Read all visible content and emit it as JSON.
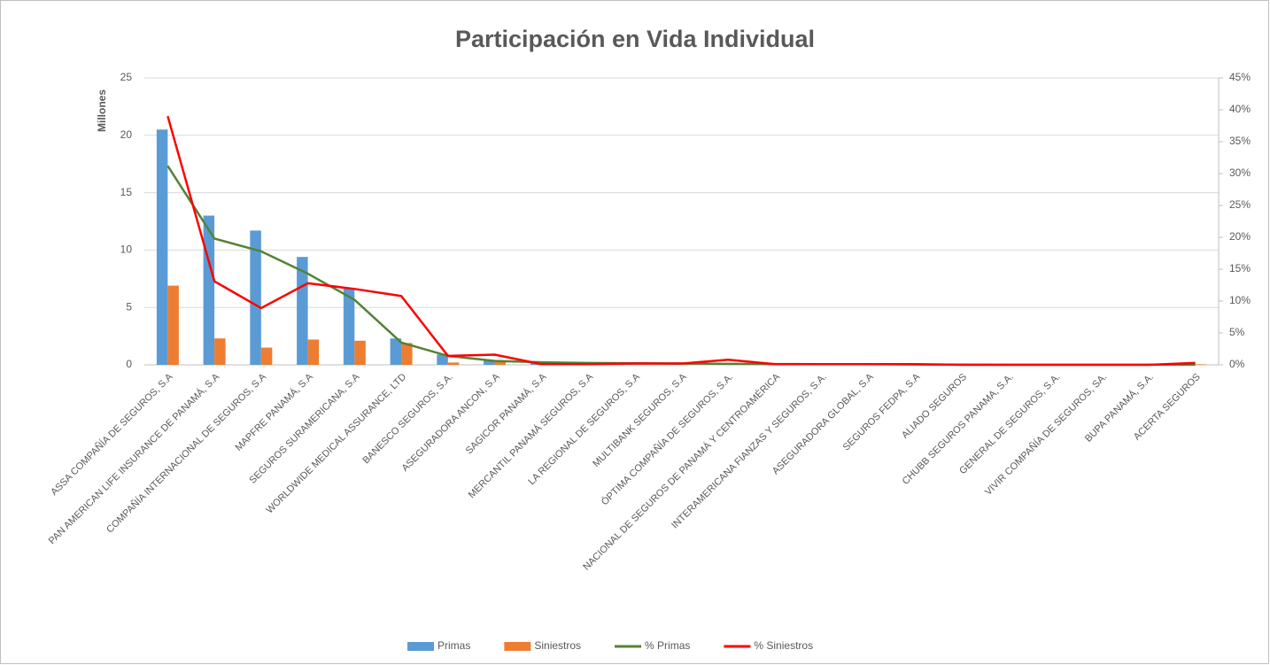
{
  "chart_data": {
    "type": "bar_line_combo",
    "title": "Participación en Vida Individual",
    "y_label": "Millones",
    "categories": [
      "ASSA COMPAÑÍA DE SEGUROS, S.A",
      "PAN AMERICAN LIFE INSURANCE DE PANAMÁ, S.A",
      "COMPAÑÍA INTERNACIONAL DE SEGUROS, S.A",
      "MAPFRE PANAMÁ, S.A",
      "SEGUROS SURAMERICANA, S.A",
      "WORLDWIDE MEDICAL ASSURANCE, LTD",
      "BANESCO SEGUROS, S.A.",
      "ASEGURADORA ANCON, S.A",
      "SAGICOR PANAMÁ, S.A",
      "MERCANTIL PANAMÁ SEGUROS, S.A",
      "LA REGIONAL DE SEGUROS, S.A",
      "MULTIBANK SEGUROS, S.A",
      "ÓPTIMA COMPAÑÍA DE SEGUROS, S.A.",
      "NACIONAL DE SEGUROS  DE PANAMÁ Y CENTROAMÉRICA",
      "INTERAMERICANA  FIANZAS Y SEGUROS, S.A.",
      "ASEGURADORA GLOBAL, S.A",
      "SEGUROS FEDPA, S.A",
      "ALIADO SEGUROS",
      "CHUBB SEGUROS PANAMA, S.A.",
      "GENERAL DE SEGUROS, S.A.",
      "VIVIR COMPAÑÍA DE SEGUROS, SA.",
      "BUPA PANAMÁ, S.A.",
      "ACERTA SEGUROS"
    ],
    "series": [
      {
        "name": "Primas",
        "type": "bar",
        "color": "#5b9bd5",
        "values": [
          20.5,
          13.0,
          11.7,
          9.4,
          6.7,
          2.3,
          0.9,
          0.4,
          0.25,
          0.2,
          0.15,
          0.12,
          0.1,
          0.08,
          0.07,
          0.06,
          0.04,
          0.02,
          0.01,
          0.01,
          0.01,
          0.01,
          0.005
        ]
      },
      {
        "name": "Siniestros",
        "type": "bar",
        "color": "#ed7d31",
        "values": [
          6.9,
          2.3,
          1.5,
          2.2,
          2.1,
          1.9,
          0.2,
          0.3,
          0.02,
          0.02,
          0.03,
          0.03,
          0.1,
          0.01,
          0.01,
          0.02,
          0.01,
          0,
          0,
          0,
          0,
          0,
          0.05
        ]
      },
      {
        "name": "% Primas",
        "type": "line",
        "axis": "y2",
        "color": "#548235",
        "values": [
          31.2,
          19.8,
          17.8,
          14.3,
          10.2,
          3.5,
          1.4,
          0.6,
          0.4,
          0.3,
          0.25,
          0.2,
          0.15,
          0.12,
          0.1,
          0.1,
          0.06,
          0.03,
          0.02,
          0.02,
          0.02,
          0.02,
          0.01
        ]
      },
      {
        "name": "% Siniestros",
        "type": "line",
        "axis": "y2",
        "color": "#ff0000",
        "values": [
          39.0,
          13.1,
          8.9,
          12.8,
          11.9,
          10.8,
          1.4,
          1.6,
          0.1,
          0.1,
          0.2,
          0.2,
          0.8,
          0.1,
          0.1,
          0.1,
          0.1,
          0,
          0,
          0,
          0,
          0,
          0.3
        ]
      }
    ],
    "ylim": [
      0,
      25
    ],
    "yticks": [
      0,
      5,
      10,
      15,
      20,
      25
    ],
    "y2lim": [
      0,
      45
    ],
    "y2ticks": [
      {
        "value": 0,
        "label": "0%"
      },
      {
        "value": 5,
        "label": "5%"
      },
      {
        "value": 10,
        "label": "10%"
      },
      {
        "value": 15,
        "label": "15%"
      },
      {
        "value": 20,
        "label": "20%"
      },
      {
        "value": 25,
        "label": "25%"
      },
      {
        "value": 30,
        "label": "30%"
      },
      {
        "value": 35,
        "label": "35%"
      },
      {
        "value": 40,
        "label": "40%"
      },
      {
        "value": 45,
        "label": "45%"
      }
    ],
    "grid": true,
    "legend": "bottom"
  }
}
